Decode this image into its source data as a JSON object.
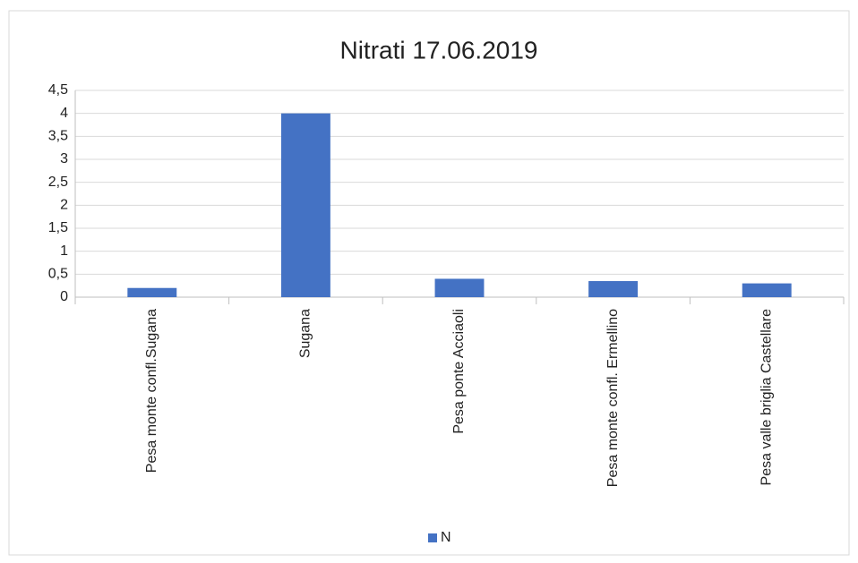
{
  "chart_data": {
    "type": "bar",
    "title": "Nitrati 17.06.2019",
    "categories": [
      "Pesa monte confl.Sugana",
      "Sugana",
      "Pesa ponte Acciaoli",
      "Pesa monte confl. Ermellino",
      "Pesa valle briglia Castellare"
    ],
    "series": [
      {
        "name": "N",
        "color": "#4472c4",
        "values": [
          0.2,
          4,
          0.4,
          0.35,
          0.3
        ]
      }
    ],
    "ylim": [
      0,
      4.5
    ],
    "yticks": [
      0,
      {
        "value": 0.5,
        "label": "0,5"
      },
      1,
      {
        "value": 1.5,
        "label": "1,5"
      },
      2,
      {
        "value": 2.5,
        "label": "2,5"
      },
      3,
      {
        "value": 3.5,
        "label": "3,5"
      },
      4,
      {
        "value": 4.5,
        "label": "4,5"
      }
    ],
    "grid": true,
    "legend": "bottom"
  }
}
